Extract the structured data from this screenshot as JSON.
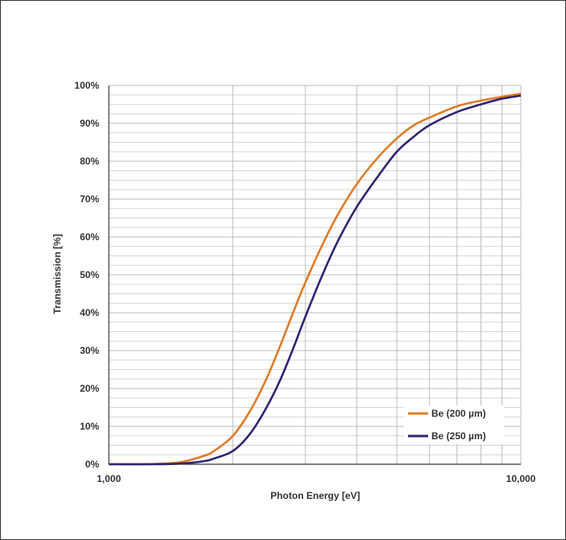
{
  "chart_data": {
    "type": "line",
    "title": "",
    "xlabel": "Photon Energy [eV]",
    "ylabel": "Transmission [%]",
    "x_scale": "log",
    "xlim": [
      1000,
      10000
    ],
    "ylim": [
      0,
      100
    ],
    "x_ticks": [
      {
        "value": 1000,
        "label": "1,000"
      },
      {
        "value": 10000,
        "label": "10,000"
      }
    ],
    "y_ticks": [
      {
        "value": 0,
        "label": "0%"
      },
      {
        "value": 10,
        "label": "10%"
      },
      {
        "value": 20,
        "label": "20%"
      },
      {
        "value": 30,
        "label": "30%"
      },
      {
        "value": 40,
        "label": "40%"
      },
      {
        "value": 50,
        "label": "50%"
      },
      {
        "value": 60,
        "label": "60%"
      },
      {
        "value": 70,
        "label": "70%"
      },
      {
        "value": 80,
        "label": "80%"
      },
      {
        "value": 90,
        "label": "90%"
      },
      {
        "value": 100,
        "label": "100%"
      }
    ],
    "grid": true,
    "legend_position": "bottom-right",
    "series": [
      {
        "name": "Be (200 µm)",
        "color": "#e07b27",
        "x": [
          1000,
          1300,
          1500,
          1700,
          1800,
          2000,
          2200,
          2400,
          2600,
          2800,
          3000,
          3300,
          3600,
          4000,
          4500,
          5000,
          5500,
          6000,
          7000,
          8000,
          9000,
          10000
        ],
        "y": [
          0,
          0.1,
          0.6,
          2.2,
          3.5,
          7.5,
          14,
          22,
          31,
          40,
          48,
          58,
          66,
          74,
          81,
          86,
          89.5,
          91.5,
          94.5,
          96,
          97,
          97.8
        ]
      },
      {
        "name": "Be (250 µm)",
        "color": "#2e2573",
        "x": [
          1000,
          1300,
          1500,
          1700,
          1800,
          2000,
          2200,
          2400,
          2600,
          2800,
          3000,
          3300,
          3600,
          4000,
          4500,
          5000,
          5500,
          6000,
          7000,
          8000,
          9000,
          10000
        ],
        "y": [
          0,
          0,
          0.2,
          0.8,
          1.5,
          3.5,
          8,
          14.5,
          22,
          30.5,
          39,
          50,
          59,
          68,
          76,
          82.5,
          86.5,
          89.5,
          93,
          95,
          96.5,
          97.3
        ]
      }
    ]
  }
}
